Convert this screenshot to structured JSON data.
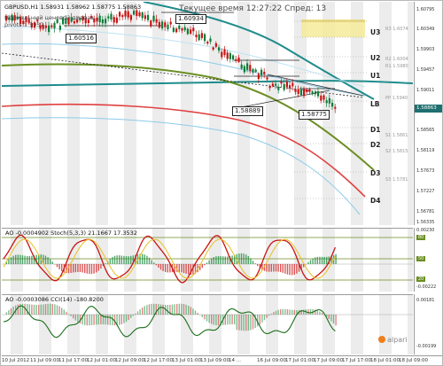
{
  "header": {
    "symbol_line": "GBPUSD,H1 1.58931 1.58962 1.58775 1.58863",
    "indicator_line1": "Нормальный ценовой диапаз...",
    "indicator_line2": "pivots 1.5932",
    "status": "Текущее время 12:27:22 Спред: 13"
  },
  "price_scale": {
    "ticks": [
      "1.60795",
      "1.60349",
      "1.59903",
      "1.59457",
      "1.59011",
      "1.58565",
      "1.58119",
      "1.57673",
      "1.57227",
      "1.56781",
      "1.56335"
    ],
    "current_price": "1.58863",
    "current_price_color": "#1e6f6f"
  },
  "pivot_labels": [
    "U3",
    "U2",
    "U1",
    "LB",
    "D1",
    "D2",
    "D3",
    "D4"
  ],
  "pivot_side_labels": [
    "R3 1.6074",
    "R2 1.6004",
    "R1 1.5980",
    "PP 1.5940",
    "S1 1.5861",
    "S2 1.5815",
    "S3 1.5781"
  ],
  "box_labels": [
    "1.60516",
    "1.60934",
    "1.58889",
    "1.58775"
  ],
  "time_axis": [
    "10 Jul 2012",
    "11 Jul 09:00",
    "11 Jul 17:00",
    "12 Jul 01:00",
    "12 Jul 09:00",
    "12 Jul 17:00",
    "13 Jul 01:00",
    "13 Jul 09:00",
    "14 ...",
    "16 Jul 09:00",
    "17 Jul 01:00",
    "17 Jul 09:00",
    "17 Jul 17:00",
    "18 Jul 01:00",
    "18 Jul 09:00"
  ],
  "osc1": {
    "title": "AO -0.0004902  Stoch(5,3,3) 21.1667 17.3532",
    "scale": [
      "80",
      "50",
      "20",
      "0.00230",
      "-0.00222"
    ]
  },
  "osc2": {
    "title": "AO -0.0003086  CCI(14) -180.8200",
    "scale": [
      "0.00181",
      "-0.00199"
    ]
  },
  "branding": {
    "logo_text": "alpari"
  },
  "colors": {
    "bull_candle": "#0f7d3a",
    "bear_candle": "#c81414",
    "teal_ma": "#1f8c8c",
    "olive_ma": "#6b8e23",
    "red_ma": "#e04040",
    "light_blue": "#8ccbe8"
  }
}
